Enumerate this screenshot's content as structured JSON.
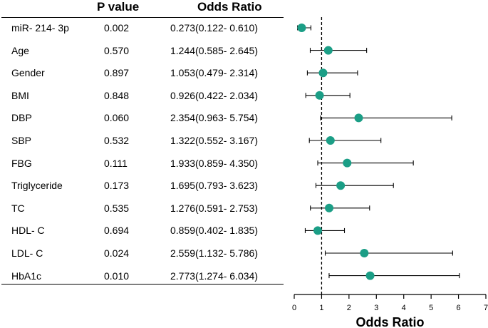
{
  "table": {
    "header_p": "P value",
    "header_or": "Odds Ratio",
    "rows": [
      {
        "variable": "miR- 214- 3p",
        "p": "0.002",
        "or_text": "0.273(0.122- 0.610)"
      },
      {
        "variable": "Age",
        "p": "0.570",
        "or_text": "1.244(0.585- 2.645)"
      },
      {
        "variable": "Gender",
        "p": "0.897",
        "or_text": "1.053(0.479- 2.314)"
      },
      {
        "variable": "BMI",
        "p": "0.848",
        "or_text": "0.926(0.422- 2.034)"
      },
      {
        "variable": "DBP",
        "p": "0.060",
        "or_text": "2.354(0.963- 5.754)"
      },
      {
        "variable": "SBP",
        "p": "0.532",
        "or_text": "1.322(0.552- 3.167)"
      },
      {
        "variable": "FBG",
        "p": "0.111",
        "or_text": "1.933(0.859- 4.350)"
      },
      {
        "variable": "Triglyceride",
        "p": "0.173",
        "or_text": "1.695(0.793- 3.623)"
      },
      {
        "variable": "TC",
        "p": "0.535",
        "or_text": "1.276(0.591- 2.753)"
      },
      {
        "variable": "HDL- C",
        "p": "0.694",
        "or_text": "0.859(0.402- 1.835)"
      },
      {
        "variable": "LDL- C",
        "p": "0.024",
        "or_text": "2.559(1.132- 5.786)"
      },
      {
        "variable": "HbA1c",
        "p": "0.010",
        "or_text": "2.773(1.274- 6.034)"
      }
    ]
  },
  "chart_data": {
    "type": "scatter",
    "subtype": "forest",
    "xlabel": "Odds Ratio",
    "xlim": [
      0,
      7
    ],
    "xticks": [
      "0",
      "1",
      "2",
      "3",
      "4",
      "5",
      "6",
      "7"
    ],
    "reference_line": 1,
    "marker_color": "#1b9e86",
    "points": [
      {
        "label": "miR- 214- 3p",
        "or": 0.273,
        "lower": 0.122,
        "upper": 0.61
      },
      {
        "label": "Age",
        "or": 1.244,
        "lower": 0.585,
        "upper": 2.645
      },
      {
        "label": "Gender",
        "or": 1.053,
        "lower": 0.479,
        "upper": 2.314
      },
      {
        "label": "BMI",
        "or": 0.926,
        "lower": 0.422,
        "upper": 2.034
      },
      {
        "label": "DBP",
        "or": 2.354,
        "lower": 0.963,
        "upper": 5.754
      },
      {
        "label": "SBP",
        "or": 1.322,
        "lower": 0.552,
        "upper": 3.167
      },
      {
        "label": "FBG",
        "or": 1.933,
        "lower": 0.859,
        "upper": 4.35
      },
      {
        "label": "Triglyceride",
        "or": 1.695,
        "lower": 0.793,
        "upper": 3.623
      },
      {
        "label": "TC",
        "or": 1.276,
        "lower": 0.591,
        "upper": 2.753
      },
      {
        "label": "HDL- C",
        "or": 0.859,
        "lower": 0.402,
        "upper": 1.835
      },
      {
        "label": "LDL- C",
        "or": 2.559,
        "lower": 1.132,
        "upper": 5.786
      },
      {
        "label": "HbA1c",
        "or": 2.773,
        "lower": 1.274,
        "upper": 6.034
      }
    ]
  }
}
